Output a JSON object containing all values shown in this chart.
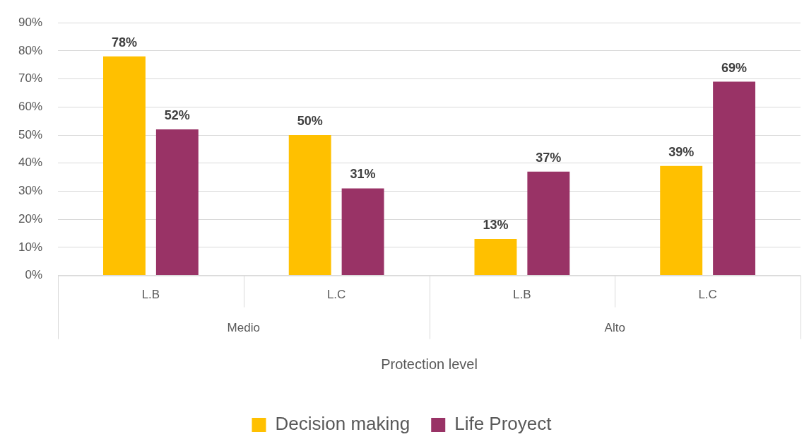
{
  "chart_data": {
    "type": "bar",
    "xlabel": "Protection level",
    "categories": [
      "L.B",
      "L.C",
      "L.B",
      "L.C"
    ],
    "annotations": [
      "Medio",
      "Alto"
    ],
    "series": [
      {
        "name": "Decision making",
        "color": "#ffc000",
        "values": [
          78,
          50,
          13,
          39
        ]
      },
      {
        "name": "Life Proyect",
        "color": "#993366",
        "values": [
          52,
          31,
          37,
          69
        ]
      }
    ],
    "ylim": [
      0,
      90
    ],
    "yticks": [
      {
        "value": 0,
        "label": "0%"
      },
      {
        "value": 10,
        "label": "10%"
      },
      {
        "value": 20,
        "label": "20%"
      },
      {
        "value": 30,
        "label": "30%"
      },
      {
        "value": 40,
        "label": "40%"
      },
      {
        "value": 50,
        "label": "50%"
      },
      {
        "value": 60,
        "label": "60%"
      },
      {
        "value": 70,
        "label": "70%"
      },
      {
        "value": 80,
        "label": "80%"
      },
      {
        "value": 90,
        "label": "90%"
      }
    ],
    "value_labels": [
      [
        "78%",
        "50%",
        "13%",
        "39%"
      ],
      [
        "52%",
        "31%",
        "37%",
        "69%"
      ]
    ],
    "grid": "y",
    "legend": "bottom"
  }
}
